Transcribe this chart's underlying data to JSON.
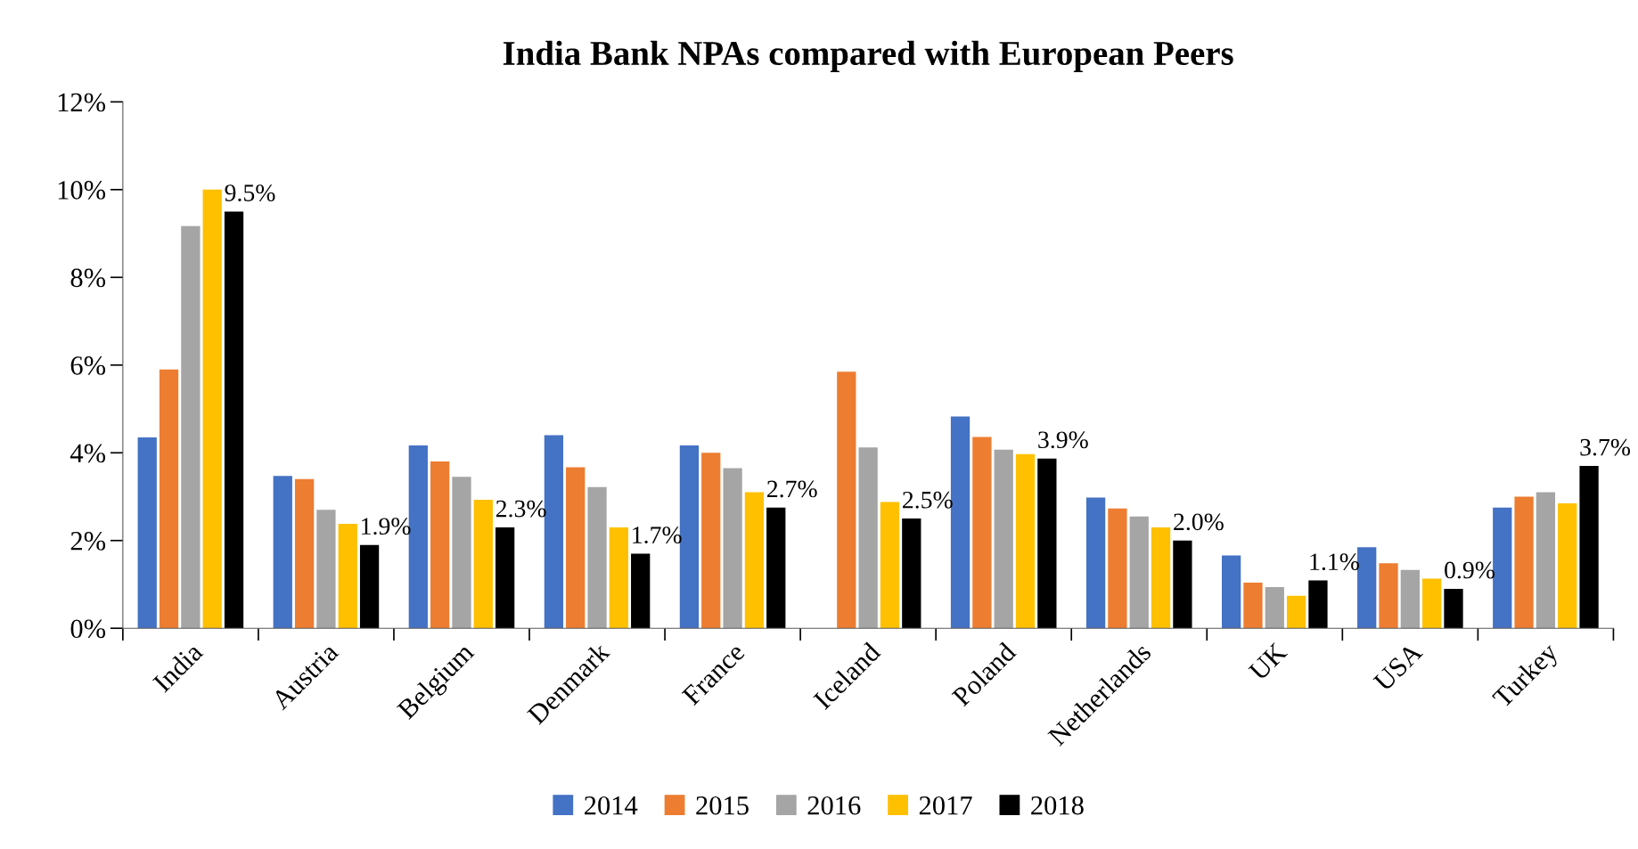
{
  "chart_data": {
    "type": "bar",
    "title": "India Bank NPAs compared with European Peers",
    "categories": [
      "India",
      "Austria",
      "Belgium",
      "Denmark",
      "France",
      "Iceland",
      "Poland",
      "Netherlands",
      "UK",
      "USA",
      "Turkey"
    ],
    "series": [
      {
        "name": "2014",
        "color": "#4472c4",
        "values": [
          4.35,
          3.47,
          4.17,
          4.4,
          4.17,
          null,
          4.83,
          2.98,
          1.66,
          1.85,
          2.75
        ]
      },
      {
        "name": "2015",
        "color": "#ed7d31",
        "values": [
          5.9,
          3.4,
          3.8,
          3.67,
          4.0,
          5.85,
          4.36,
          2.73,
          1.04,
          1.48,
          3.0
        ]
      },
      {
        "name": "2016",
        "color": "#a5a5a5",
        "values": [
          9.17,
          2.7,
          3.45,
          3.22,
          3.65,
          4.12,
          4.07,
          2.55,
          0.94,
          1.33,
          3.1
        ]
      },
      {
        "name": "2017",
        "color": "#ffc000",
        "values": [
          10.0,
          2.38,
          2.93,
          2.3,
          3.1,
          2.88,
          3.97,
          2.3,
          0.74,
          1.13,
          2.85
        ]
      },
      {
        "name": "2018",
        "color": "#000000",
        "values": [
          9.5,
          1.9,
          2.3,
          1.7,
          2.75,
          2.5,
          3.87,
          2.0,
          1.09,
          0.9,
          3.7
        ],
        "value_labels": [
          "9.5%",
          "1.9%",
          "2.3%",
          "1.7%",
          "2.7%",
          "2.5%",
          "3.9%",
          "2.0%",
          "1.1%",
          "0.9%",
          "3.7%"
        ]
      }
    ],
    "ylim": [
      0,
      12
    ],
    "yticks": [
      {
        "value": 0,
        "label": "0%"
      },
      {
        "value": 2,
        "label": "2%"
      },
      {
        "value": 4,
        "label": "4%"
      },
      {
        "value": 6,
        "label": "6%"
      },
      {
        "value": 8,
        "label": "8%"
      },
      {
        "value": 10,
        "label": "10%"
      },
      {
        "value": 12,
        "label": "12%"
      }
    ],
    "legend": "bottom",
    "grid": false
  }
}
